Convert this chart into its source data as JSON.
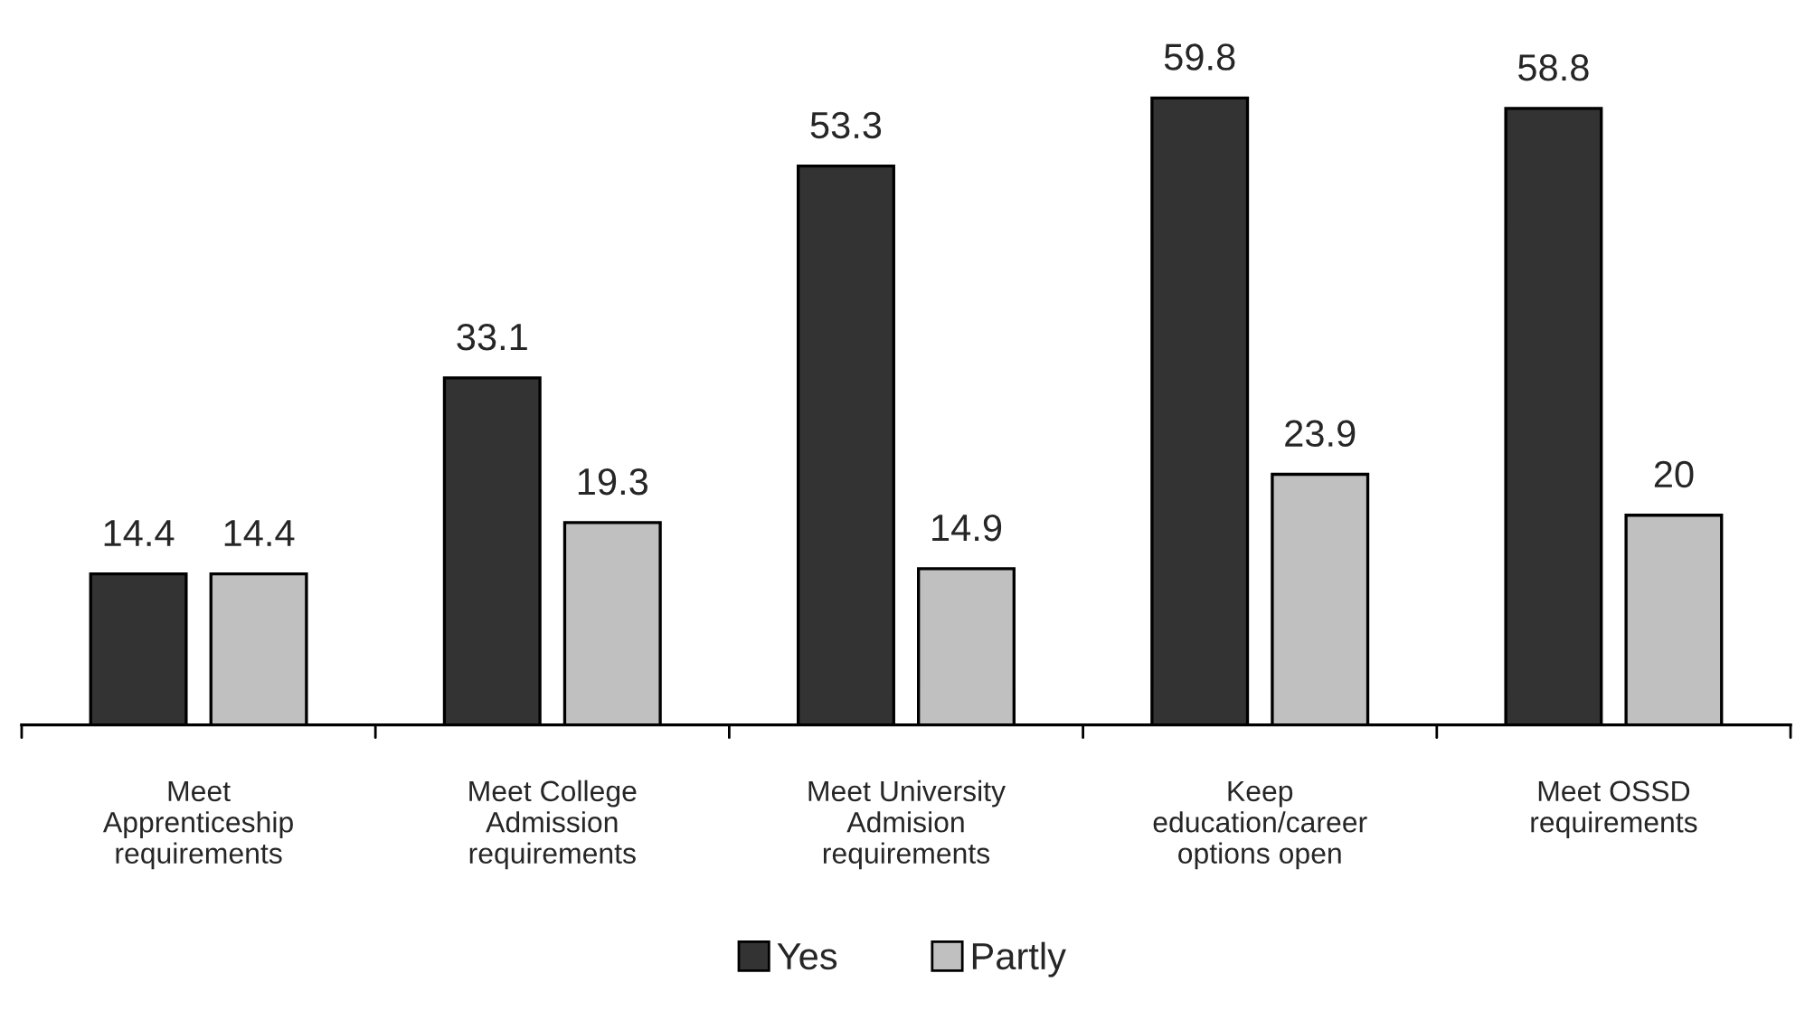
{
  "chart_data": {
    "type": "bar",
    "categories": [
      "Meet\nApprenticeship\nrequirements",
      "Meet College\nAdmission\nrequirements",
      "Meet University\nAdmision\nrequirements",
      "Keep\neducation/career\noptions open",
      "Meet OSSD\nrequirements"
    ],
    "series": [
      {
        "name": "Yes",
        "color": "#333333",
        "values": [
          14.4,
          33.1,
          53.3,
          59.8,
          58.8
        ]
      },
      {
        "name": "Partly",
        "color": "#c0c0c0",
        "values": [
          14.4,
          19.3,
          14.9,
          23.9,
          20
        ]
      }
    ],
    "data_labels": true,
    "legend": "bottom",
    "grid": false
  }
}
